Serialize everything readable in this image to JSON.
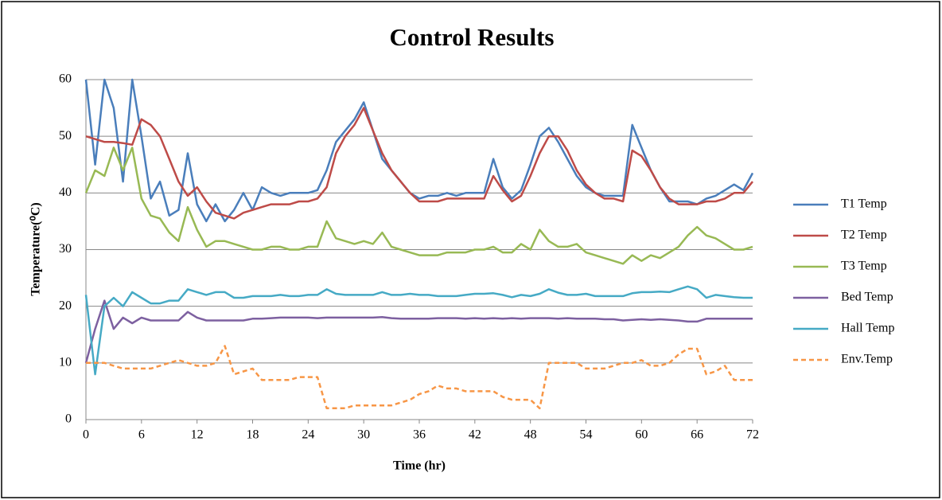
{
  "chart_data": {
    "type": "line",
    "title": "Control Results",
    "xlabel": "Time (hr)",
    "ylabel": "Temperature(⁰C)",
    "x": [
      0,
      1,
      2,
      3,
      4,
      5,
      6,
      7,
      8,
      9,
      10,
      11,
      12,
      13,
      14,
      15,
      16,
      17,
      18,
      19,
      20,
      21,
      22,
      23,
      24,
      25,
      26,
      27,
      28,
      29,
      30,
      31,
      32,
      33,
      34,
      35,
      36,
      37,
      38,
      39,
      40,
      41,
      42,
      43,
      44,
      45,
      46,
      47,
      48,
      49,
      50,
      51,
      52,
      53,
      54,
      55,
      56,
      57,
      58,
      59,
      60,
      61,
      62,
      63,
      64,
      65,
      66,
      67,
      68,
      69,
      70,
      71,
      72
    ],
    "xlim": [
      0,
      72
    ],
    "xticks": [
      0,
      6,
      12,
      18,
      24,
      30,
      36,
      42,
      48,
      54,
      60,
      66,
      72
    ],
    "ylim": [
      0,
      60
    ],
    "yticks": [
      0,
      10,
      20,
      30,
      40,
      50,
      60
    ],
    "grid": true,
    "legend": "right",
    "series": [
      {
        "name": "T1 Temp",
        "color": "#4a7ebb",
        "values": [
          60,
          45,
          60,
          55,
          42,
          60,
          50,
          39,
          42,
          36,
          37,
          47,
          38,
          35,
          38,
          35,
          37,
          40,
          37,
          41,
          40,
          39.5,
          40,
          40,
          40,
          40.5,
          44,
          49,
          51,
          53,
          56,
          51,
          46,
          44,
          42,
          40,
          39,
          39.5,
          39.5,
          40,
          39.5,
          40,
          40,
          40,
          46,
          41,
          39,
          40.5,
          45,
          50,
          51.5,
          49,
          46,
          43,
          41,
          40,
          39.5,
          39.5,
          39.5,
          52,
          48,
          44,
          41,
          38.5,
          38.5,
          38.5,
          38,
          39,
          39.5,
          40.5,
          41.5,
          40.5,
          43.5
        ]
      },
      {
        "name": "T2 Temp",
        "color": "#be4b48",
        "values": [
          50,
          49.5,
          49,
          49,
          48.8,
          48.5,
          53,
          52,
          50,
          46,
          42,
          39.5,
          41,
          38.5,
          36.5,
          36,
          35.5,
          36.5,
          37,
          37.5,
          38,
          38,
          38,
          38.5,
          38.5,
          39,
          41,
          47,
          50,
          52,
          55,
          51,
          47,
          44,
          42,
          40,
          38.5,
          38.5,
          38.5,
          39,
          39,
          39,
          39,
          39,
          43,
          40.5,
          38.5,
          39.5,
          43,
          47,
          50,
          50,
          47.5,
          44,
          41.5,
          40,
          39,
          39,
          38.5,
          47.5,
          46.5,
          44,
          41,
          39,
          38,
          38,
          38,
          38.5,
          38.5,
          39,
          40,
          40,
          42
        ]
      },
      {
        "name": "T3 Temp",
        "color": "#98b954",
        "values": [
          40,
          44,
          43,
          48,
          44,
          48,
          39,
          36,
          35.5,
          33,
          31.5,
          37.5,
          33.5,
          30.5,
          31.5,
          31.5,
          31,
          30.5,
          30,
          30,
          30.5,
          30.5,
          30,
          30,
          30.5,
          30.5,
          35,
          32,
          31.5,
          31,
          31.5,
          31,
          33,
          30.5,
          30,
          29.5,
          29,
          29,
          29,
          29.5,
          29.5,
          29.5,
          30,
          30,
          30.5,
          29.5,
          29.5,
          31,
          30,
          33.5,
          31.5,
          30.5,
          30.5,
          31,
          29.5,
          29,
          28.5,
          28,
          27.5,
          29,
          28,
          29,
          28.5,
          29.5,
          30.5,
          32.5,
          34,
          32.5,
          32,
          31,
          30,
          30,
          30.5
        ]
      },
      {
        "name": "Bed Temp",
        "color": "#7d60a0",
        "values": [
          10,
          16,
          21,
          16,
          18,
          17,
          18,
          17.5,
          17.5,
          17.5,
          17.5,
          19,
          18,
          17.5,
          17.5,
          17.5,
          17.5,
          17.5,
          17.8,
          17.8,
          17.9,
          18,
          18,
          18,
          18,
          17.9,
          18,
          18,
          18,
          18,
          18,
          18,
          18.1,
          17.9,
          17.8,
          17.8,
          17.8,
          17.8,
          17.9,
          17.9,
          17.9,
          17.8,
          17.9,
          17.8,
          17.9,
          17.8,
          17.9,
          17.8,
          17.9,
          17.9,
          17.9,
          17.8,
          17.9,
          17.8,
          17.8,
          17.8,
          17.7,
          17.7,
          17.5,
          17.6,
          17.7,
          17.6,
          17.7,
          17.6,
          17.5,
          17.3,
          17.3,
          17.8,
          17.8,
          17.8,
          17.8,
          17.8,
          17.8
        ]
      },
      {
        "name": "Hall Temp",
        "color": "#46aac5",
        "values": [
          22,
          8,
          20,
          21.5,
          20,
          22.5,
          21.5,
          20.5,
          20.5,
          21,
          21,
          23,
          22.5,
          22,
          22.5,
          22.5,
          21.5,
          21.5,
          21.8,
          21.8,
          21.8,
          22,
          21.8,
          21.8,
          22,
          22,
          23,
          22.2,
          22,
          22,
          22,
          22,
          22.5,
          22,
          22,
          22.2,
          22,
          22,
          21.8,
          21.8,
          21.8,
          22,
          22.2,
          22.2,
          22.3,
          22,
          21.6,
          22,
          21.8,
          22.2,
          23,
          22.4,
          22,
          22,
          22.2,
          21.8,
          21.8,
          21.8,
          21.8,
          22.3,
          22.5,
          22.5,
          22.6,
          22.5,
          23,
          23.5,
          23,
          21.5,
          22,
          21.8,
          21.6,
          21.5,
          21.5
        ]
      },
      {
        "name": "Env.Temp",
        "color": "#f79646",
        "dashed": true,
        "values": [
          10,
          10,
          10,
          9.5,
          9,
          9,
          9,
          9,
          9.5,
          10,
          10.5,
          10,
          9.5,
          9.5,
          10,
          13,
          8,
          8.5,
          9,
          7,
          7,
          7,
          7,
          7.5,
          7.5,
          7.5,
          2,
          2,
          2,
          2.5,
          2.5,
          2.5,
          2.5,
          2.5,
          3,
          3.5,
          4.5,
          5,
          6,
          5.5,
          5.5,
          5,
          5,
          5,
          5,
          4,
          3.5,
          3.5,
          3.5,
          2,
          10,
          10,
          10,
          10,
          9,
          9,
          9,
          9.5,
          10,
          10,
          10.5,
          9.5,
          9.5,
          10,
          11.5,
          12.5,
          12.5,
          8,
          8.5,
          9.5,
          7,
          7,
          7
        ]
      }
    ]
  }
}
